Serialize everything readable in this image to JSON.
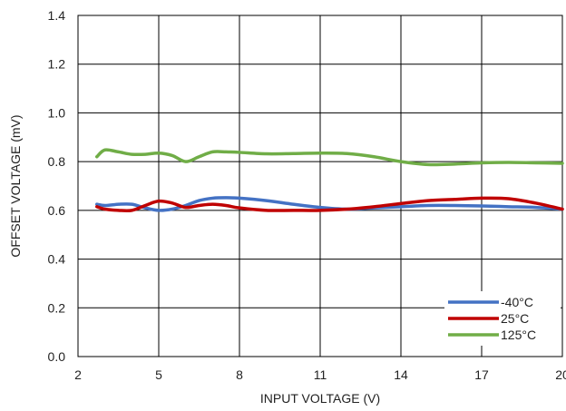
{
  "chart_data": {
    "type": "line",
    "title": "",
    "xlabel": "INPUT VOLTAGE (V)",
    "ylabel": "OFFSET VOLTAGE (mV)",
    "xlim": [
      2,
      20
    ],
    "ylim": [
      0,
      1.4
    ],
    "xticks": [
      "2",
      "5",
      "8",
      "11",
      "14",
      "17",
      "20"
    ],
    "yticks": [
      "0.0",
      "0.2",
      "0.4",
      "0.6",
      "0.8",
      "1.0",
      "1.2",
      "1.4"
    ],
    "grid": true,
    "legend_position": "bottom-right",
    "series": [
      {
        "name": "-40°C",
        "color": "#4472C4",
        "x": [
          2.7,
          3.0,
          3.5,
          4.0,
          4.5,
          5.0,
          5.5,
          6.0,
          6.5,
          7.0,
          7.5,
          8.0,
          9.0,
          10.0,
          11.0,
          12.0,
          13.0,
          14.0,
          15.0,
          16.0,
          17.0,
          18.0,
          19.0,
          20.0
        ],
        "y": [
          0.625,
          0.62,
          0.625,
          0.625,
          0.61,
          0.6,
          0.605,
          0.62,
          0.64,
          0.65,
          0.652,
          0.65,
          0.64,
          0.625,
          0.612,
          0.605,
          0.61,
          0.615,
          0.62,
          0.62,
          0.618,
          0.615,
          0.612,
          0.605
        ]
      },
      {
        "name": "25°C",
        "color": "#C00000",
        "x": [
          2.7,
          3.0,
          3.5,
          4.0,
          4.5,
          5.0,
          5.5,
          6.0,
          6.5,
          7.0,
          7.5,
          8.0,
          9.0,
          10.0,
          11.0,
          12.0,
          13.0,
          14.0,
          15.0,
          16.0,
          17.0,
          18.0,
          19.0,
          20.0
        ],
        "y": [
          0.615,
          0.605,
          0.6,
          0.6,
          0.62,
          0.638,
          0.63,
          0.612,
          0.62,
          0.625,
          0.62,
          0.61,
          0.6,
          0.6,
          0.6,
          0.605,
          0.615,
          0.628,
          0.64,
          0.645,
          0.65,
          0.648,
          0.63,
          0.605
        ]
      },
      {
        "name": "125°C",
        "color": "#70AD47",
        "x": [
          2.7,
          3.0,
          3.5,
          4.0,
          4.5,
          5.0,
          5.5,
          6.0,
          6.5,
          7.0,
          7.5,
          8.0,
          9.0,
          10.0,
          11.0,
          12.0,
          13.0,
          14.0,
          15.0,
          16.0,
          17.0,
          18.0,
          19.0,
          20.0
        ],
        "y": [
          0.82,
          0.848,
          0.84,
          0.83,
          0.83,
          0.835,
          0.825,
          0.8,
          0.82,
          0.84,
          0.84,
          0.838,
          0.832,
          0.833,
          0.835,
          0.833,
          0.82,
          0.8,
          0.788,
          0.79,
          0.795,
          0.797,
          0.795,
          0.793
        ]
      }
    ]
  }
}
